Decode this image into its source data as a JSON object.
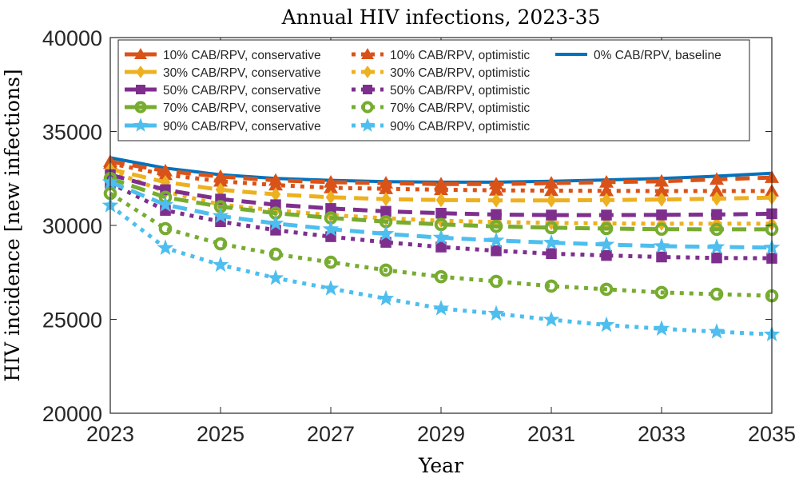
{
  "chart_data": {
    "type": "line",
    "title": "Annual HIV infections, 2023-35",
    "xlabel": "Year",
    "ylabel": "HIV incidence [new infections]",
    "xlim": [
      2023,
      2035
    ],
    "ylim": [
      20000,
      40000
    ],
    "x": [
      2023,
      2024,
      2025,
      2026,
      2027,
      2028,
      2029,
      2030,
      2031,
      2032,
      2033,
      2034,
      2035
    ],
    "xticks": [
      2023,
      2025,
      2027,
      2029,
      2031,
      2033,
      2035
    ],
    "xtick_labels": [
      "2023",
      "2025",
      "2027",
      "2029",
      "2031",
      "2033",
      "2035"
    ],
    "yticks": [
      20000,
      25000,
      30000,
      35000,
      40000
    ],
    "ytick_labels": [
      "20000",
      "25000",
      "30000",
      "35000",
      "40000"
    ],
    "grid": false,
    "legend_position": "top",
    "legend_columns": 3,
    "series": [
      {
        "name": "10% CAB/RPV, conservative",
        "color": "#D95319",
        "style": "dashed",
        "marker": "triangle",
        "values": [
          33400,
          32900,
          32600,
          32400,
          32300,
          32250,
          32200,
          32200,
          32250,
          32300,
          32350,
          32450,
          32550
        ]
      },
      {
        "name": "30% CAB/RPV, conservative",
        "color": "#EDB120",
        "style": "dashed",
        "marker": "diamond",
        "values": [
          33000,
          32300,
          31900,
          31650,
          31500,
          31400,
          31350,
          31330,
          31330,
          31350,
          31380,
          31420,
          31480
        ]
      },
      {
        "name": "50% CAB/RPV, conservative",
        "color": "#7E2F8E",
        "style": "dashed",
        "marker": "square",
        "values": [
          32700,
          31900,
          31400,
          31100,
          30900,
          30750,
          30650,
          30580,
          30550,
          30550,
          30560,
          30580,
          30620
        ]
      },
      {
        "name": "70% CAB/RPV, conservative",
        "color": "#77AC30",
        "style": "dashed",
        "marker": "circle",
        "values": [
          32500,
          31500,
          31000,
          30650,
          30400,
          30200,
          30050,
          29950,
          29880,
          29830,
          29800,
          29790,
          29790
        ]
      },
      {
        "name": "90% CAB/RPV, conservative",
        "color": "#4DBEEE",
        "style": "dashed",
        "marker": "star",
        "values": [
          32300,
          31100,
          30500,
          30100,
          29800,
          29550,
          29350,
          29200,
          29080,
          28980,
          28900,
          28850,
          28820
        ]
      },
      {
        "name": "10% CAB/RPV, optimistic",
        "color": "#D95319",
        "style": "dotted",
        "marker": "triangle",
        "values": [
          33300,
          32700,
          32350,
          32150,
          32000,
          31950,
          31900,
          31870,
          31850,
          31840,
          31830,
          31830,
          31830
        ]
      },
      {
        "name": "30% CAB/RPV, optimistic",
        "color": "#EDB120",
        "style": "dotted",
        "marker": "diamond",
        "values": [
          32900,
          31800,
          31100,
          30800,
          30550,
          30380,
          30250,
          30180,
          30130,
          30100,
          30090,
          30090,
          30090
        ]
      },
      {
        "name": "50% CAB/RPV, optimistic",
        "color": "#7E2F8E",
        "style": "dotted",
        "marker": "square",
        "values": [
          32250,
          30800,
          30200,
          29750,
          29400,
          29100,
          28850,
          28650,
          28500,
          28400,
          28320,
          28270,
          28250
        ]
      },
      {
        "name": "70% CAB/RPV, optimistic",
        "color": "#77AC30",
        "style": "dotted",
        "marker": "circle",
        "values": [
          31700,
          29830,
          29020,
          28470,
          28040,
          27620,
          27270,
          27020,
          26770,
          26600,
          26430,
          26340,
          26250
        ]
      },
      {
        "name": "90% CAB/RPV, optimistic",
        "color": "#4DBEEE",
        "style": "dotted",
        "marker": "star",
        "values": [
          31060,
          28800,
          27900,
          27200,
          26640,
          26100,
          25580,
          25300,
          24980,
          24700,
          24500,
          24340,
          24200
        ]
      },
      {
        "name": "0% CAB/RPV, baseline",
        "color": "#0072BD",
        "style": "solid",
        "marker": "none",
        "values": [
          33600,
          33050,
          32700,
          32500,
          32400,
          32330,
          32300,
          32300,
          32350,
          32420,
          32500,
          32620,
          32780
        ]
      }
    ]
  }
}
